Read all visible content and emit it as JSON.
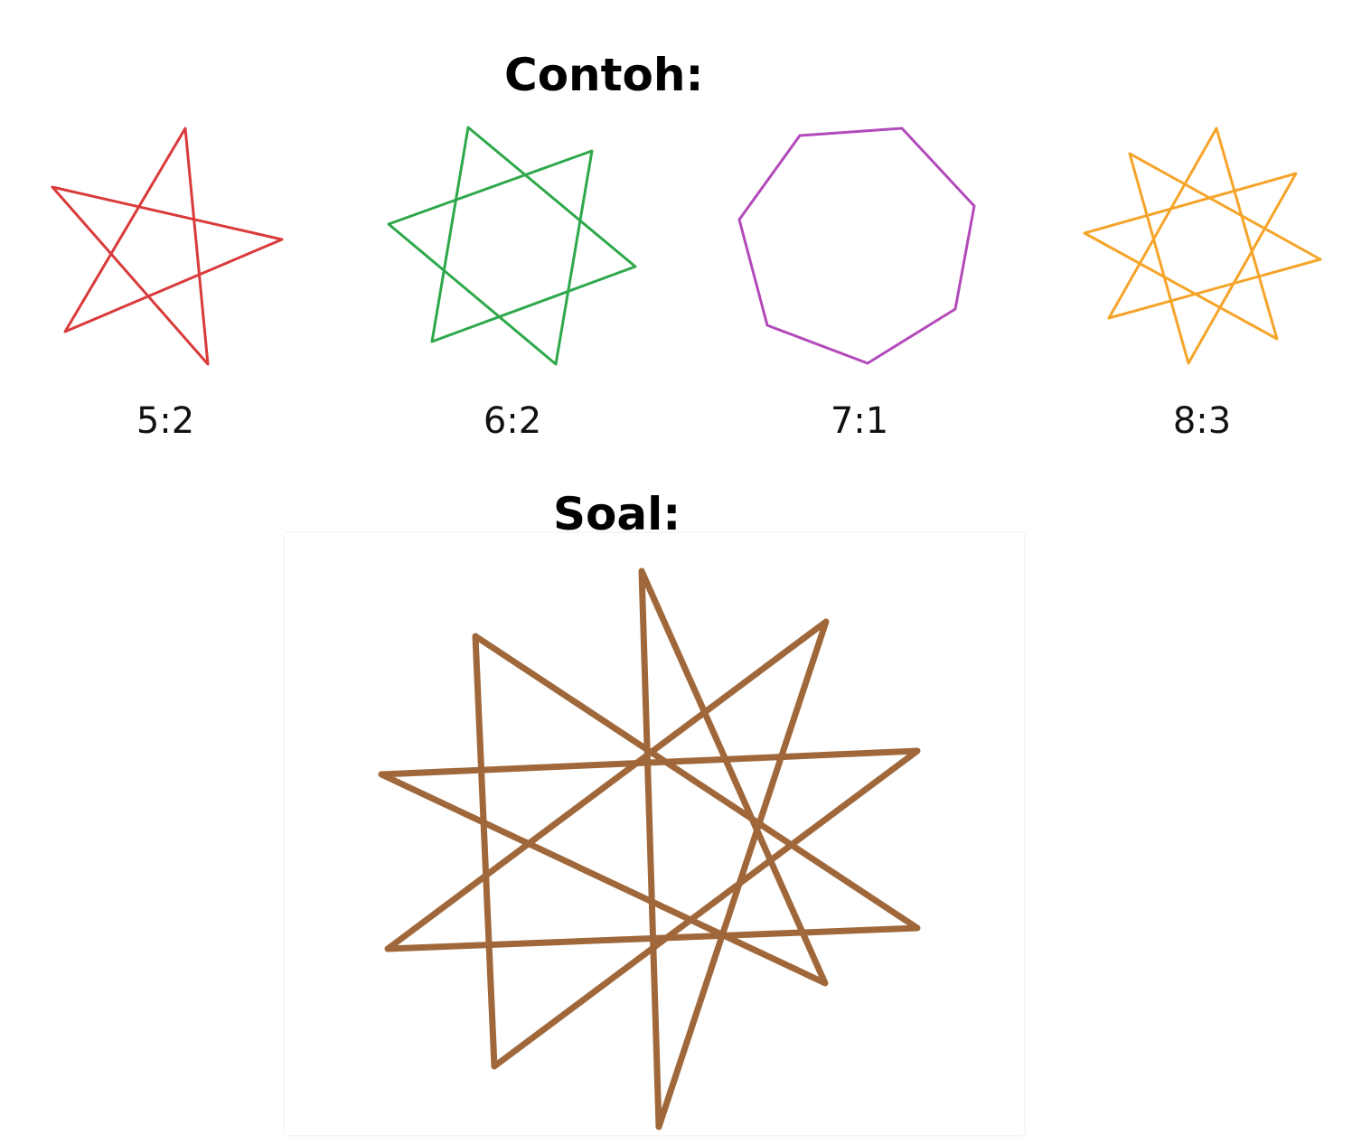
{
  "examples_heading": "Contoh:",
  "question_heading": "Soal:",
  "examples": [
    {
      "label": "5:2",
      "points": 5,
      "step": 2,
      "color": "#d93a3a"
    },
    {
      "label": "6:2",
      "points": 6,
      "step": 2,
      "color": "#2ea84a"
    },
    {
      "label": "7:1",
      "points": 7,
      "step": 1,
      "color": "#b24aba"
    },
    {
      "label": "8:3",
      "points": 8,
      "step": 3,
      "color": "#f5a42a"
    }
  ],
  "question": {
    "points": 10,
    "step": 3,
    "color": "#a0683a"
  }
}
